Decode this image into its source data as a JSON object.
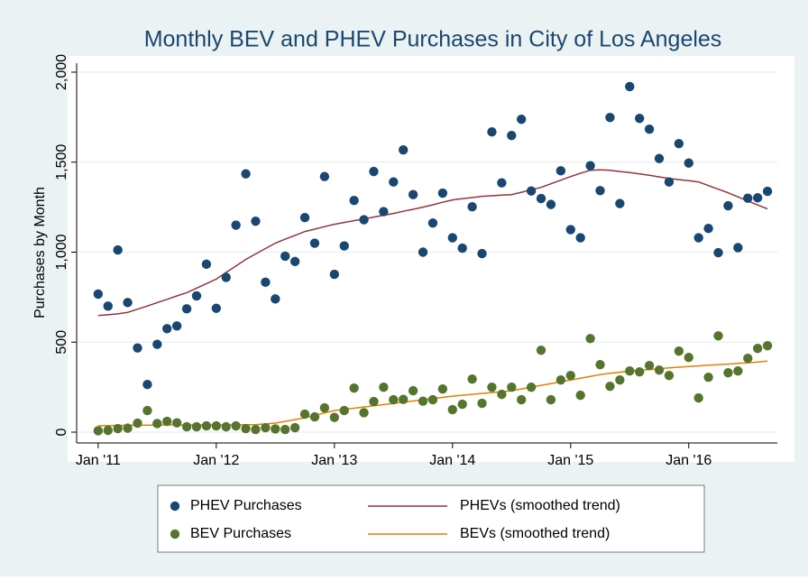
{
  "chart_data": {
    "type": "scatter",
    "title": "Monthly BEV and PHEV Purchases in City of Los Angeles",
    "ylabel": "Purchases by Month",
    "x": [
      "2011-01",
      "2011-02",
      "2011-03",
      "2011-04",
      "2011-05",
      "2011-06",
      "2011-07",
      "2011-08",
      "2011-09",
      "2011-10",
      "2011-11",
      "2011-12",
      "2012-01",
      "2012-02",
      "2012-03",
      "2012-04",
      "2012-05",
      "2012-06",
      "2012-07",
      "2012-08",
      "2012-09",
      "2012-10",
      "2012-11",
      "2012-12",
      "2013-01",
      "2013-02",
      "2013-03",
      "2013-04",
      "2013-05",
      "2013-06",
      "2013-07",
      "2013-08",
      "2013-09",
      "2013-10",
      "2013-11",
      "2013-12",
      "2014-01",
      "2014-02",
      "2014-03",
      "2014-04",
      "2014-05",
      "2014-06",
      "2014-07",
      "2014-08",
      "2014-09",
      "2014-10",
      "2014-11",
      "2014-12",
      "2015-01",
      "2015-02",
      "2015-03",
      "2015-04",
      "2015-05",
      "2015-06",
      "2015-07",
      "2015-08",
      "2015-09",
      "2015-10",
      "2015-11",
      "2015-12",
      "2016-01",
      "2016-02",
      "2016-03",
      "2016-04",
      "2016-05",
      "2016-06",
      "2016-07",
      "2016-08",
      "2016-09"
    ],
    "series": [
      {
        "name": "PHEV Purchases",
        "kind": "scatter",
        "color": "#1a476f",
        "values": [
          767,
          700,
          1012,
          720,
          468,
          265,
          488,
          575,
          590,
          685,
          757,
          933,
          688,
          860,
          1150,
          1435,
          1172,
          833,
          740,
          978,
          948,
          1192,
          1050,
          1420,
          877,
          1035,
          1287,
          1180,
          1448,
          1225,
          1390,
          1568,
          1320,
          1000,
          1162,
          1328,
          1080,
          1022,
          1252,
          992,
          1668,
          1385,
          1648,
          1738,
          1340,
          1298,
          1265,
          1452,
          1125,
          1080,
          1480,
          1342,
          1748,
          1270,
          1920,
          1743,
          1683,
          1520,
          1390,
          1603,
          1495,
          1080,
          1132,
          997,
          1258,
          1025,
          1300,
          1302,
          1338
        ]
      },
      {
        "name": "PHEVs (smoothed trend)",
        "kind": "line",
        "color": "#90353b",
        "values": [
          648,
          652,
          657,
          665,
          683,
          701,
          720,
          738,
          757,
          775,
          800,
          825,
          850,
          887,
          923,
          960,
          990,
          1020,
          1050,
          1072,
          1093,
          1115,
          1128,
          1142,
          1155,
          1165,
          1175,
          1185,
          1195,
          1205,
          1215,
          1227,
          1238,
          1250,
          1263,
          1277,
          1290,
          1297,
          1303,
          1310,
          1313,
          1317,
          1320,
          1333,
          1347,
          1360,
          1380,
          1400,
          1420,
          1438,
          1455,
          1457,
          1455,
          1448,
          1442,
          1435,
          1427,
          1418,
          1410,
          1403,
          1397,
          1390,
          1370,
          1350,
          1330,
          1307,
          1284,
          1262,
          1240
        ]
      },
      {
        "name": "BEV Purchases",
        "kind": "scatter",
        "color": "#55752f",
        "values": [
          8,
          10,
          20,
          22,
          50,
          120,
          48,
          60,
          52,
          30,
          30,
          35,
          35,
          30,
          35,
          20,
          15,
          25,
          18,
          15,
          25,
          100,
          85,
          135,
          82,
          120,
          245,
          108,
          170,
          250,
          180,
          182,
          230,
          172,
          180,
          240,
          125,
          155,
          295,
          160,
          250,
          210,
          250,
          180,
          250,
          455,
          180,
          290,
          315,
          205,
          520,
          375,
          255,
          290,
          340,
          335,
          370,
          345,
          315,
          450,
          415,
          190,
          305,
          535,
          330,
          340,
          410,
          465,
          480
        ]
      },
      {
        "name": "BEVs (smoothed trend)",
        "kind": "line",
        "color": "#e37e00",
        "values": [
          35,
          36,
          37,
          38,
          38,
          39,
          39,
          40,
          40,
          40,
          40,
          40,
          40,
          40,
          40,
          41,
          42,
          45,
          50,
          60,
          70,
          80,
          93,
          107,
          120,
          127,
          133,
          140,
          147,
          153,
          160,
          167,
          173,
          180,
          187,
          193,
          200,
          205,
          210,
          215,
          220,
          225,
          230,
          240,
          250,
          260,
          270,
          280,
          290,
          300,
          310,
          320,
          327,
          333,
          340,
          344,
          348,
          352,
          357,
          361,
          365,
          368,
          372,
          375,
          378,
          382,
          385,
          390,
          395
        ]
      }
    ],
    "xlim": [
      "2010-11",
      "2016-10"
    ],
    "xticks": [
      {
        "value": "2011-01",
        "label": "Jan '11"
      },
      {
        "value": "2012-01",
        "label": "Jan '12"
      },
      {
        "value": "2013-01",
        "label": "Jan '13"
      },
      {
        "value": "2014-01",
        "label": "Jan '14"
      },
      {
        "value": "2015-01",
        "label": "Jan '15"
      },
      {
        "value": "2016-01",
        "label": "Jan '16"
      }
    ],
    "ylim": [
      -50,
      2050
    ],
    "yticks": [
      0,
      500,
      {
        "value": 1000,
        "label": "1,000"
      },
      {
        "value": 1500,
        "label": "1,500"
      },
      {
        "value": 2000,
        "label": "2,000"
      }
    ],
    "grid": true,
    "legend": "bottom"
  }
}
